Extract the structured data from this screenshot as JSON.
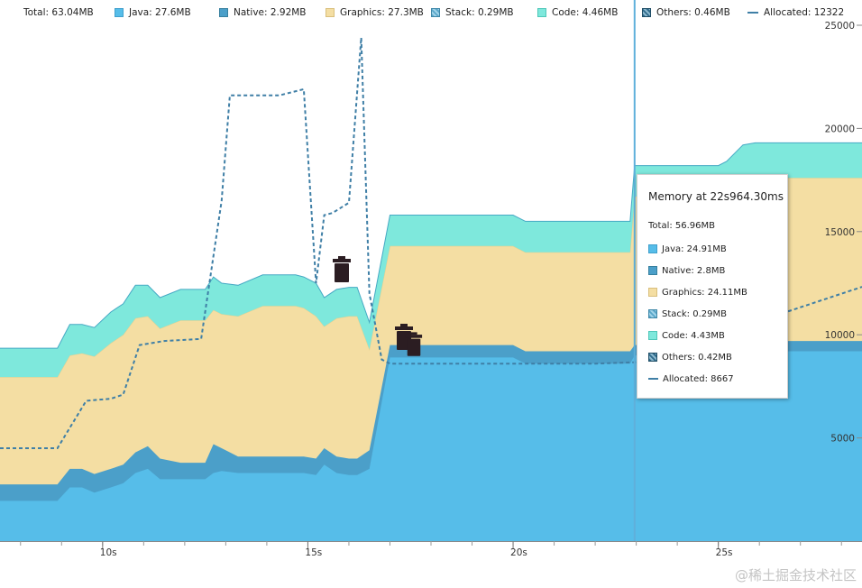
{
  "legend": {
    "total": "Total: 63.04MB",
    "java": "Java: 27.6MB",
    "native": "Native: 2.92MB",
    "graphics": "Graphics: 27.3MB",
    "stack": "Stack: 0.29MB",
    "code": "Code: 4.46MB",
    "others": "Others: 0.46MB",
    "allocated": "Allocated: 12322"
  },
  "tooltip": {
    "title": "Memory at 22s964.30ms",
    "total": "Total: 56.96MB",
    "rows": {
      "java": "Java: 24.91MB",
      "native": "Native: 2.8MB",
      "graphics": "Graphics: 24.11MB",
      "stack": "Stack: 0.29MB",
      "code": "Code: 4.43MB",
      "others": "Others: 0.42MB",
      "allocated": "Allocated: 8667"
    }
  },
  "watermark": "@稀土掘金技术社区",
  "icons": [
    "trash-icon",
    "trash-icon",
    "trash-icon"
  ],
  "colors": {
    "java": "#56bde9",
    "native": "#4b9fc9",
    "graphics": "#f4dea3",
    "code": "#7ee8dc",
    "stack": "#5aa7c9",
    "others": "#2f6a8a",
    "allocated": "#3f7fa6",
    "cursor": "#5fb0da"
  },
  "chart_data": {
    "type": "area",
    "stacked": true,
    "x_unit": "s",
    "y_range": [
      0,
      25000
    ],
    "x_range": [
      7.5,
      28.5
    ],
    "y_ticks": [
      5000,
      10000,
      15000,
      20000,
      25000
    ],
    "y_tick_labels": [
      "5000",
      "10000",
      "15000",
      "20000",
      "25000"
    ],
    "x_ticks": [
      10,
      15,
      20,
      25
    ],
    "x_tick_labels": [
      "10s",
      "15s",
      "20s",
      "25s"
    ],
    "cursor_x": 22.96,
    "x": [
      7.5,
      8.9,
      9.2,
      9.5,
      9.8,
      10.2,
      10.5,
      10.8,
      11.1,
      11.4,
      11.9,
      12.5,
      12.7,
      12.9,
      13.3,
      13.9,
      14.3,
      14.7,
      14.9,
      15.2,
      15.4,
      15.7,
      16.0,
      16.2,
      16.5,
      17.0,
      17.5,
      18.0,
      18.5,
      19.0,
      20.0,
      20.3,
      21.0,
      22.0,
      22.6,
      22.85,
      22.96,
      23.4,
      24.0,
      25.0,
      25.2,
      25.6,
      25.9,
      26.5,
      27.0,
      28.5
    ],
    "java": [
      1950,
      1950,
      2600,
      2600,
      2350,
      2600,
      2800,
      3300,
      3500,
      3000,
      3000,
      3000,
      3300,
      3400,
      3300,
      3300,
      3300,
      3300,
      3300,
      3200,
      3700,
      3300,
      3200,
      3200,
      3500,
      8900,
      8900,
      8900,
      8900,
      8900,
      8900,
      8600,
      8600,
      8600,
      8600,
      8600,
      9000,
      9000,
      9000,
      9000,
      9000,
      9000,
      9200,
      9200,
      9200,
      9200
    ],
    "native": [
      800,
      800,
      900,
      900,
      900,
      900,
      900,
      1000,
      1100,
      1000,
      800,
      800,
      1400,
      1100,
      800,
      800,
      800,
      800,
      800,
      800,
      800,
      800,
      800,
      800,
      900,
      600,
      600,
      600,
      600,
      600,
      600,
      600,
      600,
      600,
      600,
      600,
      500,
      500,
      500,
      500,
      500,
      500,
      500,
      500,
      500,
      500
    ],
    "graphics": [
      5200,
      5200,
      5500,
      5600,
      5700,
      6100,
      6300,
      6500,
      6300,
      6300,
      6900,
      6900,
      6500,
      6500,
      6800,
      7300,
      7300,
      7300,
      7200,
      6900,
      5900,
      6700,
      6900,
      6900,
      4900,
      4800,
      4800,
      4800,
      4800,
      4800,
      4800,
      4800,
      4800,
      4800,
      4800,
      4800,
      7200,
      7200,
      7200,
      7200,
      7300,
      8000,
      7900,
      7900,
      7900,
      7900
    ],
    "code": [
      1400,
      1400,
      1500,
      1400,
      1400,
      1500,
      1500,
      1600,
      1500,
      1500,
      1500,
      1500,
      1600,
      1500,
      1500,
      1500,
      1500,
      1500,
      1500,
      1600,
      1400,
      1400,
      1400,
      1400,
      1300,
      1500,
      1500,
      1500,
      1500,
      1500,
      1500,
      1500,
      1500,
      1500,
      1500,
      1500,
      1500,
      1500,
      1500,
      1500,
      1600,
      1700,
      1700,
      1700,
      1700,
      1700
    ],
    "allocated_x": [
      7.5,
      8.9,
      9.6,
      10.2,
      10.5,
      10.9,
      11.5,
      12.4,
      12.9,
      13.1,
      13.4,
      14.3,
      14.9,
      15.2,
      15.4,
      15.6,
      16.0,
      16.3,
      16.5,
      16.8,
      17.0,
      20.0,
      22.0,
      22.96,
      28.5
    ],
    "allocated": [
      4500,
      4500,
      6800,
      6900,
      7100,
      9500,
      9700,
      9800,
      16500,
      21600,
      21600,
      21600,
      21900,
      12500,
      15800,
      15900,
      16400,
      24400,
      12000,
      8800,
      8600,
      8600,
      8600,
      8667,
      12322
    ]
  }
}
